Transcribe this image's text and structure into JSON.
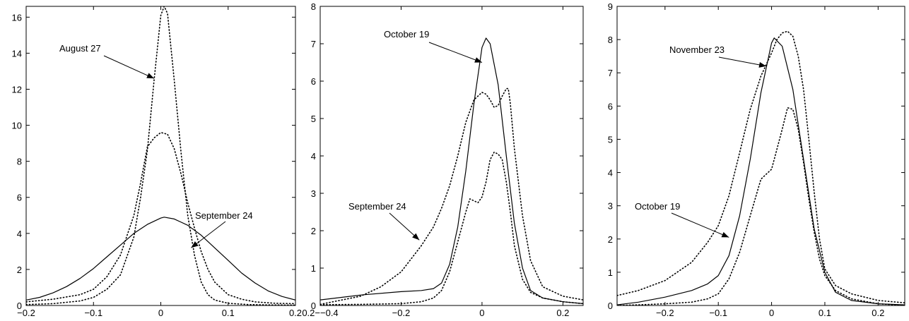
{
  "chart_data": [
    {
      "type": "line",
      "title": "",
      "xlabel": "",
      "ylabel": "",
      "xlim": [
        -0.2,
        0.2
      ],
      "ylim": [
        0,
        16.6
      ],
      "xticks": [
        -0.2,
        -0.1,
        0,
        0.1,
        0.2
      ],
      "xtick_labels": [
        "-0.2",
        "-0.1",
        "0",
        "0.1",
        "0.2"
      ],
      "yticks": [
        0,
        2,
        4,
        6,
        8,
        10,
        12,
        14,
        16
      ],
      "ytick_labels": [
        "0",
        "2",
        "4",
        "6",
        "8",
        "10",
        "12",
        "14",
        "16"
      ],
      "grid": false,
      "series": [
        {
          "style": "solid",
          "x": [
            -0.2,
            -0.18,
            -0.16,
            -0.14,
            -0.12,
            -0.1,
            -0.08,
            -0.06,
            -0.04,
            -0.02,
            0,
            0.005,
            0.02,
            0.04,
            0.06,
            0.08,
            0.1,
            0.12,
            0.14,
            0.16,
            0.18,
            0.2
          ],
          "y": [
            0.3,
            0.45,
            0.7,
            1.05,
            1.5,
            2.05,
            2.7,
            3.35,
            4.0,
            4.5,
            4.85,
            4.9,
            4.8,
            4.45,
            3.9,
            3.2,
            2.5,
            1.8,
            1.25,
            0.8,
            0.5,
            0.3
          ]
        },
        {
          "style": "dotted",
          "x": [
            -0.2,
            -0.16,
            -0.12,
            -0.1,
            -0.08,
            -0.06,
            -0.04,
            -0.03,
            -0.02,
            -0.01,
            0,
            0.005,
            0.01,
            0.02,
            0.03,
            0.04,
            0.05,
            0.06,
            0.07,
            0.08,
            0.1,
            0.13,
            0.16,
            0.2
          ],
          "y": [
            0.05,
            0.1,
            0.25,
            0.45,
            0.9,
            1.7,
            3.8,
            6.0,
            8.6,
            12.5,
            16.1,
            16.6,
            16.2,
            12.5,
            8.5,
            5.0,
            2.8,
            1.3,
            0.6,
            0.3,
            0.12,
            0.05,
            0.03,
            0.02
          ]
        },
        {
          "style": "dotted",
          "x": [
            -0.2,
            -0.16,
            -0.12,
            -0.1,
            -0.08,
            -0.06,
            -0.04,
            -0.03,
            -0.02,
            -0.01,
            0,
            0.01,
            0.02,
            0.03,
            0.04,
            0.05,
            0.06,
            0.07,
            0.08,
            0.1,
            0.12,
            0.14,
            0.17,
            0.2
          ],
          "y": [
            0.2,
            0.35,
            0.6,
            0.9,
            1.6,
            2.8,
            5.0,
            6.8,
            8.8,
            9.3,
            9.6,
            9.5,
            8.7,
            7.3,
            5.7,
            4.3,
            3.0,
            2.0,
            1.3,
            0.6,
            0.35,
            0.2,
            0.12,
            0.1
          ]
        }
      ],
      "annotations": [
        {
          "text": "August 27",
          "target": [
            -0.01,
            12.6
          ]
        },
        {
          "text": "September 24",
          "target": [
            0.045,
            3.2
          ]
        }
      ]
    },
    {
      "type": "line",
      "title": "",
      "xlabel": "",
      "ylabel": "",
      "xlim": [
        -0.4,
        0.25
      ],
      "ylim": [
        0,
        8
      ],
      "xticks": [
        -0.4,
        -0.2,
        0,
        0.2
      ],
      "xtick_labels": [
        "0.2−-0.4",
        "-0.2",
        "0",
        "0.2"
      ],
      "yticks": [
        0,
        1,
        2,
        3,
        4,
        5,
        6,
        7,
        8
      ],
      "ytick_labels": [
        "0",
        "1",
        "2",
        "3",
        "4",
        "5",
        "6",
        "7",
        "8"
      ],
      "grid": false,
      "series": [
        {
          "style": "solid",
          "x": [
            -0.4,
            -0.3,
            -0.2,
            -0.15,
            -0.12,
            -0.1,
            -0.08,
            -0.06,
            -0.04,
            -0.02,
            0,
            0.01,
            0.02,
            0.04,
            0.06,
            0.08,
            0.1,
            0.12,
            0.15,
            0.2,
            0.25
          ],
          "y": [
            0.15,
            0.28,
            0.37,
            0.4,
            0.45,
            0.6,
            1.1,
            2.1,
            3.6,
            5.4,
            6.9,
            7.15,
            7.0,
            5.9,
            4.0,
            2.2,
            1.0,
            0.4,
            0.2,
            0.1,
            0.05
          ],
          "annotation": "October 19"
        },
        {
          "style": "dotted",
          "x": [
            -0.4,
            -0.3,
            -0.25,
            -0.2,
            -0.15,
            -0.12,
            -0.1,
            -0.08,
            -0.06,
            -0.04,
            -0.02,
            0,
            0.01,
            0.02,
            0.03,
            0.04,
            0.05,
            0.06,
            0.065,
            0.07,
            0.08,
            0.1,
            0.12,
            0.15,
            0.2,
            0.25
          ],
          "y": [
            0.03,
            0.25,
            0.5,
            0.9,
            1.6,
            2.1,
            2.6,
            3.2,
            4.0,
            4.9,
            5.5,
            5.7,
            5.65,
            5.5,
            5.3,
            5.35,
            5.6,
            5.8,
            5.8,
            5.4,
            4.2,
            2.4,
            1.2,
            0.5,
            0.25,
            0.15
          ],
          "annotation": "September 24"
        },
        {
          "style": "dotted",
          "x": [
            -0.4,
            -0.3,
            -0.2,
            -0.15,
            -0.12,
            -0.1,
            -0.08,
            -0.06,
            -0.04,
            -0.03,
            -0.02,
            -0.01,
            0,
            0.01,
            0.02,
            0.03,
            0.04,
            0.05,
            0.06,
            0.07,
            0.08,
            0.1,
            0.12,
            0.15,
            0.2,
            0.25
          ],
          "y": [
            0.02,
            0.03,
            0.05,
            0.1,
            0.2,
            0.4,
            0.9,
            1.7,
            2.5,
            2.85,
            2.8,
            2.75,
            2.9,
            3.3,
            3.9,
            4.1,
            4.05,
            3.9,
            3.3,
            2.5,
            1.6,
            0.7,
            0.35,
            0.2,
            0.1,
            0.05
          ]
        }
      ],
      "annotations": [
        {
          "text": "October 19",
          "target": [
            0.0,
            6.5
          ]
        },
        {
          "text": "September 24",
          "target": [
            -0.155,
            1.75
          ]
        }
      ]
    },
    {
      "type": "line",
      "title": "",
      "xlabel": "",
      "ylabel": "",
      "xlim": [
        -0.29,
        0.25
      ],
      "ylim": [
        0,
        9
      ],
      "xticks": [
        -0.2,
        -0.1,
        0,
        0.1,
        0.2
      ],
      "xtick_labels": [
        "-0.2",
        "-0.1",
        "0",
        "0.1",
        "0.2"
      ],
      "yticks": [
        0,
        1,
        2,
        3,
        4,
        5,
        6,
        7,
        8,
        9
      ],
      "ytick_labels": [
        "0",
        "1",
        "2",
        "3",
        "4",
        "5",
        "6",
        "7",
        "8",
        "9"
      ],
      "grid": false,
      "series": [
        {
          "style": "solid",
          "x": [
            -0.29,
            -0.25,
            -0.2,
            -0.15,
            -0.12,
            -0.1,
            -0.08,
            -0.06,
            -0.04,
            -0.02,
            0,
            0.005,
            0.02,
            0.04,
            0.06,
            0.08,
            0.1,
            0.12,
            0.15,
            0.2,
            0.25
          ],
          "y": [
            0.02,
            0.1,
            0.25,
            0.45,
            0.65,
            0.9,
            1.5,
            2.7,
            4.4,
            6.4,
            7.9,
            8.05,
            7.8,
            6.5,
            4.4,
            2.3,
            1.0,
            0.4,
            0.15,
            0.05,
            0.02
          ],
          "annotation": "November 23"
        },
        {
          "style": "dotted",
          "x": [
            -0.29,
            -0.25,
            -0.2,
            -0.15,
            -0.12,
            -0.1,
            -0.08,
            -0.06,
            -0.04,
            -0.02,
            0,
            0.01,
            0.02,
            0.03,
            0.04,
            0.05,
            0.06,
            0.07,
            0.08,
            0.09,
            0.1,
            0.12,
            0.15,
            0.2,
            0.25
          ],
          "y": [
            0.3,
            0.45,
            0.75,
            1.3,
            1.9,
            2.4,
            3.3,
            4.6,
            5.9,
            6.9,
            7.6,
            8.0,
            8.2,
            8.25,
            8.1,
            7.5,
            6.5,
            5.0,
            3.4,
            2.0,
            1.1,
            0.6,
            0.35,
            0.15,
            0.08
          ],
          "annotation": "October 19"
        },
        {
          "style": "dotted",
          "x": [
            -0.29,
            -0.25,
            -0.2,
            -0.15,
            -0.12,
            -0.1,
            -0.08,
            -0.06,
            -0.04,
            -0.02,
            0,
            0.01,
            0.02,
            0.03,
            0.04,
            0.05,
            0.06,
            0.07,
            0.08,
            0.09,
            0.1,
            0.12,
            0.15,
            0.2,
            0.25
          ],
          "y": [
            0.0,
            0.02,
            0.05,
            0.1,
            0.2,
            0.35,
            0.8,
            1.6,
            2.7,
            3.8,
            4.1,
            4.7,
            5.3,
            5.95,
            5.9,
            5.3,
            4.3,
            3.2,
            2.2,
            1.4,
            0.9,
            0.45,
            0.2,
            0.05,
            0.0
          ]
        }
      ],
      "annotations": [
        {
          "text": "November 23",
          "target": [
            -0.01,
            7.2
          ]
        },
        {
          "text": "October 19",
          "target": [
            -0.08,
            2.05
          ]
        }
      ]
    }
  ]
}
